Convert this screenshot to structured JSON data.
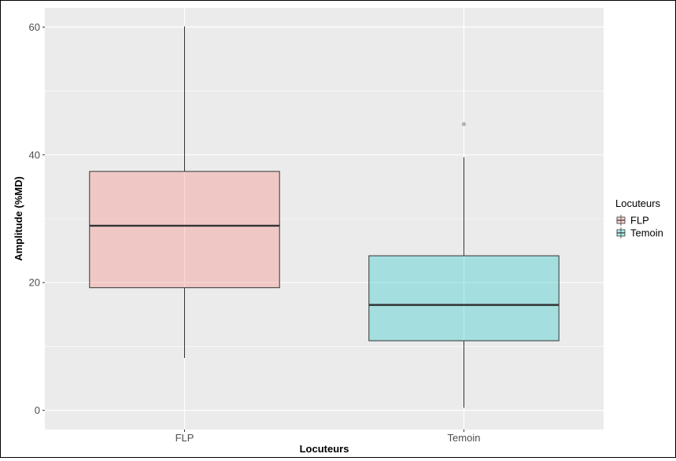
{
  "chart_data": {
    "type": "boxplot",
    "xlabel": "Locuteurs",
    "ylabel": "Amplitude (%MD)",
    "categories": [
      "FLP",
      "Temoin"
    ],
    "ylim": [
      -3,
      63
    ],
    "yticks": [
      0,
      20,
      40,
      60
    ],
    "grid": true,
    "legend": {
      "title": "Locuteurs",
      "position": "right",
      "entries": [
        "FLP",
        "Temoin"
      ]
    },
    "boxes": [
      {
        "name": "FLP",
        "color": "#f8766d",
        "whisker_low": 8.2,
        "q1": 19.2,
        "median": 28.9,
        "q3": 37.4,
        "whisker_high": 60.1,
        "outliers": []
      },
      {
        "name": "Temoin",
        "color": "#00bfc4",
        "whisker_low": 0.4,
        "q1": 10.9,
        "median": 16.5,
        "q3": 24.2,
        "whisker_high": 39.6,
        "outliers": [
          44.8
        ]
      }
    ]
  }
}
